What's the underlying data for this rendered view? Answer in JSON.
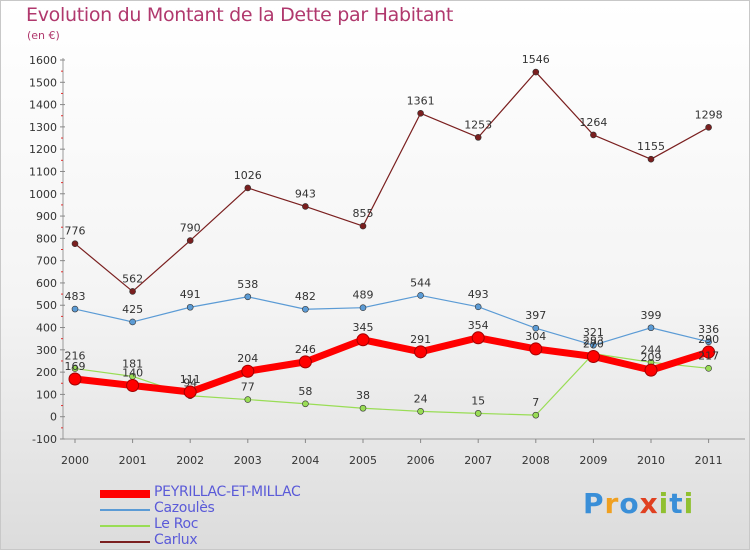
{
  "title": "Evolution du Montant de la Dette par Habitant",
  "subtitle": "(en €)",
  "brand": "Proxiti",
  "chart_data": {
    "type": "line",
    "x": [
      "2000",
      "2001",
      "2002",
      "2003",
      "2004",
      "2005",
      "2006",
      "2007",
      "2008",
      "2009",
      "2010",
      "2011"
    ],
    "ylim": [
      -100,
      1600
    ],
    "yticks": [
      -100,
      0,
      100,
      200,
      300,
      400,
      500,
      600,
      700,
      800,
      900,
      1000,
      1100,
      1200,
      1300,
      1400,
      1500,
      1600
    ],
    "grid": false,
    "legend_position": "bottom-left",
    "series": [
      {
        "name": "PEYRILLAC-ET-MILLAC",
        "color": "#ff0000",
        "values": [
          169,
          140,
          111,
          204,
          246,
          345,
          291,
          354,
          304,
          270,
          209,
          290
        ],
        "labels": [
          "169",
          "140",
          "111",
          "204",
          "246",
          "345",
          "291",
          "354",
          "304",
          "270",
          "209",
          "290"
        ]
      },
      {
        "name": "Cazoulès",
        "color": "#5b9bd5",
        "values": [
          483,
          425,
          491,
          538,
          482,
          489,
          544,
          493,
          397,
          321,
          399,
          336
        ],
        "labels": [
          "483",
          "425",
          "491",
          "538",
          "482",
          "489",
          "544",
          "493",
          "397",
          "321",
          "399",
          "336"
        ]
      },
      {
        "name": "Le Roc",
        "color": "#99dd55",
        "values": [
          216,
          181,
          94,
          77,
          58,
          38,
          24,
          15,
          7,
          283,
          244,
          217
        ],
        "labels": [
          "216",
          "181",
          "94",
          "77",
          "58",
          "38",
          "24",
          "15",
          "7",
          "283",
          "244",
          "217"
        ]
      },
      {
        "name": "Carlux",
        "color": "#7a1f1f",
        "values": [
          776,
          562,
          790,
          1026,
          943,
          855,
          1361,
          1253,
          1546,
          1264,
          1155,
          1298
        ],
        "labels": [
          "776",
          "562",
          "790",
          "1026",
          "943",
          "855",
          "1361",
          "1253",
          "1546",
          "1264",
          "1155",
          "1298"
        ]
      }
    ]
  }
}
